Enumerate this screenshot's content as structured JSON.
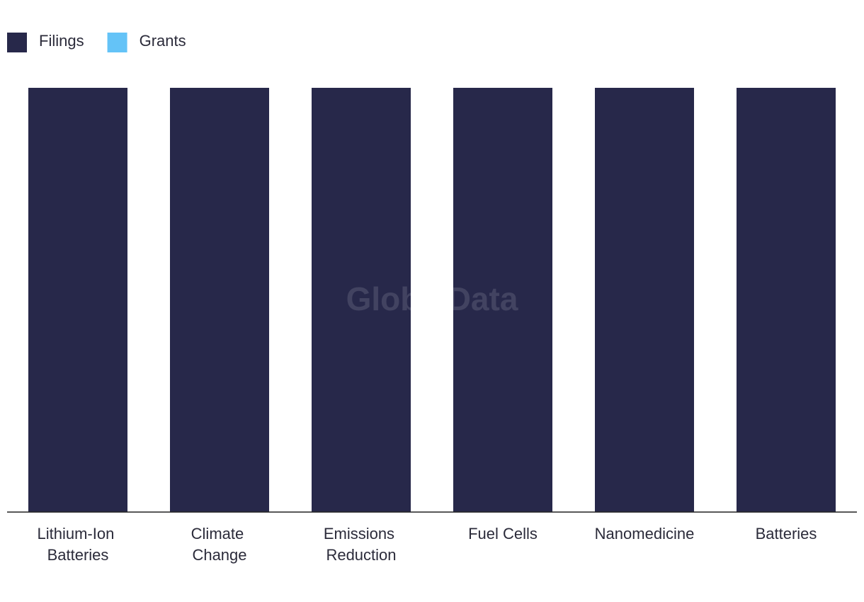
{
  "chart_data": {
    "type": "stacked_bar",
    "watermark": "GlobalData",
    "categories": [
      "Lithium-Ion Batteries",
      "Climate Change",
      "Emissions Reduction",
      "Fuel Cells",
      "Nanomedicine",
      "Batteries"
    ],
    "series": [
      {
        "name": "Filings",
        "color": "#27284a",
        "values": [
          100,
          100,
          100,
          100,
          100,
          100
        ]
      },
      {
        "name": "Grants",
        "color": "#64c3f7",
        "values": [
          0,
          0,
          0,
          0,
          0,
          0
        ]
      }
    ],
    "ylim": [
      0,
      100
    ],
    "legend": "top-left"
  }
}
